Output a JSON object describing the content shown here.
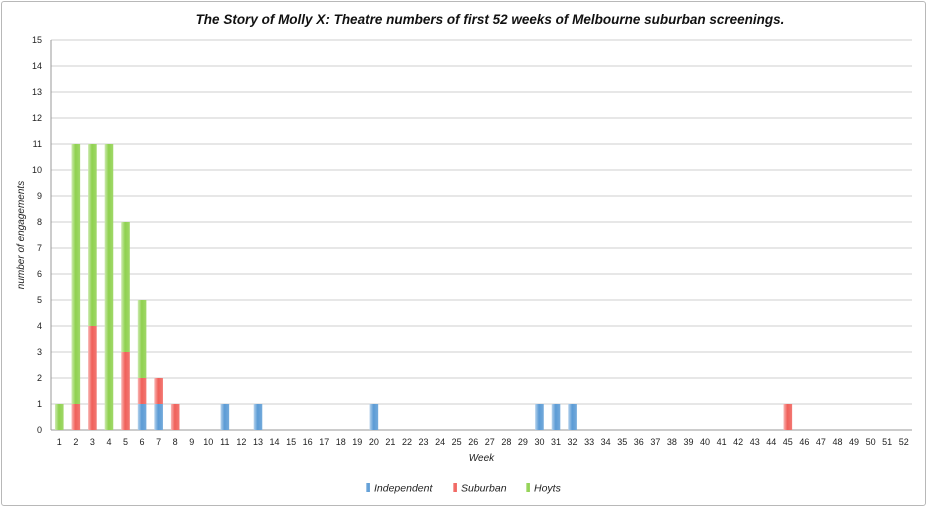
{
  "chart_data": {
    "type": "bar",
    "stacked": true,
    "title": "The Story of Molly X: Theatre numbers of first 52 weeks of Melbourne suburban screenings.",
    "xlabel": "Week",
    "ylabel": "number of engagements",
    "ylim": [
      0,
      15
    ],
    "yticks": [
      0,
      1,
      2,
      3,
      4,
      5,
      6,
      7,
      8,
      9,
      10,
      11,
      12,
      13,
      14,
      15
    ],
    "grid": true,
    "legend_position": "bottom",
    "categories": [
      "1",
      "2",
      "3",
      "4",
      "5",
      "6",
      "7",
      "8",
      "9",
      "10",
      "11",
      "12",
      "13",
      "14",
      "15",
      "16",
      "17",
      "18",
      "19",
      "20",
      "21",
      "22",
      "23",
      "24",
      "25",
      "26",
      "27",
      "28",
      "29",
      "30",
      "31",
      "32",
      "33",
      "34",
      "35",
      "36",
      "37",
      "38",
      "39",
      "40",
      "41",
      "42",
      "43",
      "44",
      "45",
      "46",
      "47",
      "48",
      "49",
      "50",
      "51",
      "52"
    ],
    "series": [
      {
        "name": "Independent",
        "color": "#5b9bd5",
        "values": [
          0,
          0,
          0,
          0,
          0,
          1,
          1,
          0,
          0,
          0,
          1,
          0,
          1,
          0,
          0,
          0,
          0,
          0,
          0,
          1,
          0,
          0,
          0,
          0,
          0,
          0,
          0,
          0,
          0,
          1,
          1,
          1,
          0,
          0,
          0,
          0,
          0,
          0,
          0,
          0,
          0,
          0,
          0,
          0,
          0,
          0,
          0,
          0,
          0,
          0,
          0,
          0
        ]
      },
      {
        "name": "Suburban",
        "color": "#f0605a",
        "values": [
          0,
          1,
          4,
          0,
          3,
          1,
          1,
          1,
          0,
          0,
          0,
          0,
          0,
          0,
          0,
          0,
          0,
          0,
          0,
          0,
          0,
          0,
          0,
          0,
          0,
          0,
          0,
          0,
          0,
          0,
          0,
          0,
          0,
          0,
          0,
          0,
          0,
          0,
          0,
          0,
          0,
          0,
          0,
          0,
          1,
          0,
          0,
          0,
          0,
          0,
          0,
          0
        ]
      },
      {
        "name": "Hoyts",
        "color": "#8fd14f",
        "values": [
          1,
          10,
          7,
          11,
          5,
          3,
          0,
          0,
          0,
          0,
          0,
          0,
          0,
          0,
          0,
          0,
          0,
          0,
          0,
          0,
          0,
          0,
          0,
          0,
          0,
          0,
          0,
          0,
          0,
          0,
          0,
          0,
          0,
          0,
          0,
          0,
          0,
          0,
          0,
          0,
          0,
          0,
          0,
          0,
          0,
          0,
          0,
          0,
          0,
          0,
          0,
          0
        ]
      }
    ]
  }
}
